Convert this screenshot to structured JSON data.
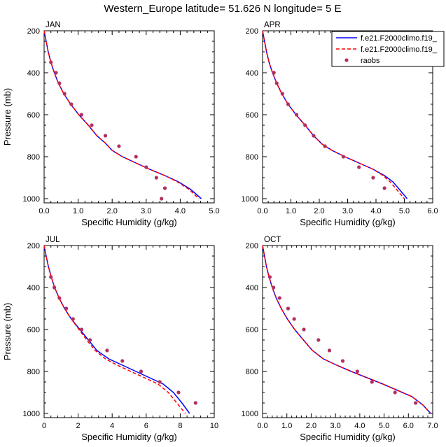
{
  "figure": {
    "title": "Western_Europe  latitude= 51.626 N longitude= 5 E"
  },
  "legend": {
    "placement": "top-right",
    "entries": [
      {
        "label": "f.e21.F2000climo.f19_",
        "color": "#0000ff",
        "style": "solid"
      },
      {
        "label": "f.e21.F2000climo.f19_",
        "color": "#ff0000",
        "style": "dashed"
      },
      {
        "label": "raobs",
        "color": "#b03060",
        "style": "marker"
      }
    ]
  },
  "chart_data": [
    {
      "type": "line",
      "panel": "JAN",
      "xlabel": "Specific Humidity (g/kg)",
      "ylabel": "Pressure (mb)",
      "xlim": [
        0,
        5
      ],
      "ylim": [
        1020,
        200
      ],
      "y_reversed": true,
      "xticks": [
        0.0,
        1.0,
        2.0,
        3.0,
        4.0,
        5.0
      ],
      "xtick_labels": [
        "0.0",
        "1.0",
        "2.0",
        "3.0",
        "4.0",
        "5.0"
      ],
      "yticks": [
        200,
        400,
        600,
        800,
        1000
      ],
      "series": [
        {
          "name": "f.e21.F2000climo.f19_",
          "color": "#0000ff",
          "style": "solid",
          "x": [
            0.0,
            0.06,
            0.12,
            0.2,
            0.3,
            0.42,
            0.58,
            0.78,
            1.02,
            1.3,
            1.55,
            1.8,
            2.0,
            2.3,
            2.7,
            3.1,
            3.55,
            3.95,
            4.3,
            4.62
          ],
          "y": [
            200,
            250,
            300,
            350,
            400,
            450,
            500,
            550,
            600,
            650,
            700,
            735,
            770,
            800,
            830,
            860,
            890,
            920,
            955,
            1000
          ]
        },
        {
          "name": "f.e21.F2000climo.f19_",
          "color": "#ff0000",
          "style": "dashed",
          "x": [
            0.0,
            0.06,
            0.12,
            0.2,
            0.3,
            0.42,
            0.58,
            0.78,
            1.02,
            1.3,
            1.55,
            1.8,
            2.0,
            2.3,
            2.7,
            3.1,
            3.55,
            3.92,
            4.25,
            4.55
          ],
          "y": [
            200,
            250,
            300,
            350,
            400,
            450,
            500,
            550,
            600,
            650,
            700,
            735,
            770,
            800,
            830,
            860,
            890,
            920,
            955,
            1000
          ]
        },
        {
          "name": "raobs",
          "color": "#b03060",
          "style": "marker",
          "x": [
            0.2,
            0.35,
            0.45,
            0.6,
            0.8,
            1.1,
            1.4,
            1.8,
            2.2,
            2.7,
            3.0,
            3.3,
            3.55,
            3.45
          ],
          "y": [
            350,
            400,
            450,
            500,
            550,
            600,
            650,
            700,
            750,
            800,
            850,
            900,
            950,
            1000
          ]
        }
      ]
    },
    {
      "type": "line",
      "panel": "APR",
      "xlabel": "Specific Humidity (g/kg)",
      "ylabel": "",
      "xlim": [
        0,
        6
      ],
      "ylim": [
        1020,
        200
      ],
      "y_reversed": true,
      "xticks": [
        0.0,
        1.0,
        2.0,
        3.0,
        4.0,
        5.0,
        6.0
      ],
      "xtick_labels": [
        "0.0",
        "1.0",
        "2.0",
        "3.0",
        "4.0",
        "5.0",
        "6.0"
      ],
      "yticks": [
        200,
        400,
        600,
        800,
        1000
      ],
      "series": [
        {
          "name": "f.e21.F2000climo.f19_",
          "color": "#0000ff",
          "style": "solid",
          "x": [
            0.0,
            0.07,
            0.14,
            0.23,
            0.35,
            0.5,
            0.68,
            0.9,
            1.18,
            1.5,
            1.8,
            2.1,
            2.45,
            2.9,
            3.4,
            3.9,
            4.3,
            4.6,
            4.85,
            5.1
          ],
          "y": [
            200,
            250,
            300,
            350,
            400,
            450,
            500,
            550,
            600,
            650,
            700,
            740,
            770,
            800,
            830,
            860,
            890,
            920,
            960,
            1000
          ]
        },
        {
          "name": "f.e21.F2000climo.f19_",
          "color": "#ff0000",
          "style": "dashed",
          "x": [
            0.0,
            0.07,
            0.14,
            0.23,
            0.35,
            0.5,
            0.68,
            0.9,
            1.18,
            1.5,
            1.8,
            2.1,
            2.45,
            2.9,
            3.4,
            3.9,
            4.25,
            4.5,
            4.75,
            5.0
          ],
          "y": [
            200,
            250,
            300,
            350,
            400,
            450,
            500,
            550,
            600,
            650,
            700,
            740,
            770,
            800,
            830,
            860,
            890,
            920,
            960,
            1000
          ]
        },
        {
          "name": "raobs",
          "color": "#b03060",
          "style": "marker",
          "x": [
            0.4,
            0.5,
            0.7,
            0.9,
            1.2,
            1.5,
            1.8,
            2.2,
            2.85,
            3.4,
            3.9,
            4.3
          ],
          "y": [
            400,
            450,
            500,
            550,
            600,
            650,
            700,
            750,
            800,
            850,
            900,
            950
          ]
        }
      ]
    },
    {
      "type": "line",
      "panel": "JUL",
      "xlabel": "Specific Humidity (g/kg)",
      "ylabel": "Pressure (mb)",
      "xlim": [
        0,
        10
      ],
      "ylim": [
        1020,
        200
      ],
      "y_reversed": true,
      "xticks": [
        0,
        2,
        4,
        6,
        8,
        10
      ],
      "xtick_labels": [
        "0",
        "2",
        "4",
        "6",
        "8",
        "10"
      ],
      "yticks": [
        200,
        400,
        600,
        800,
        1000
      ],
      "series": [
        {
          "name": "f.e21.F2000climo.f19_",
          "color": "#0000ff",
          "style": "solid",
          "x": [
            0.0,
            0.12,
            0.25,
            0.42,
            0.62,
            0.88,
            1.2,
            1.6,
            2.1,
            2.6,
            3.1,
            3.8,
            4.6,
            5.4,
            6.2,
            7.0,
            7.6,
            8.1,
            8.55
          ],
          "y": [
            200,
            250,
            300,
            350,
            400,
            450,
            500,
            550,
            600,
            650,
            700,
            740,
            770,
            800,
            830,
            860,
            900,
            950,
            1000
          ]
        },
        {
          "name": "f.e21.F2000climo.f19_",
          "color": "#ff0000",
          "style": "dashed",
          "x": [
            0.0,
            0.12,
            0.25,
            0.42,
            0.62,
            0.88,
            1.2,
            1.6,
            2.05,
            2.5,
            3.0,
            3.6,
            4.3,
            5.1,
            5.9,
            6.7,
            7.3,
            7.8,
            8.3
          ],
          "y": [
            200,
            250,
            300,
            350,
            400,
            450,
            500,
            550,
            600,
            650,
            700,
            740,
            770,
            800,
            830,
            860,
            900,
            950,
            1000
          ]
        },
        {
          "name": "raobs",
          "color": "#b03060",
          "style": "marker",
          "x": [
            0.4,
            0.6,
            0.9,
            1.3,
            1.7,
            2.2,
            2.7,
            3.7,
            4.6,
            5.7,
            6.8,
            7.9,
            8.9
          ],
          "y": [
            350,
            400,
            450,
            500,
            550,
            600,
            650,
            700,
            750,
            800,
            850,
            900,
            950
          ]
        }
      ]
    },
    {
      "type": "line",
      "panel": "OCT",
      "xlabel": "Specific Humidity (g/kg)",
      "ylabel": "",
      "xlim": [
        0,
        7
      ],
      "ylim": [
        1020,
        200
      ],
      "y_reversed": true,
      "xticks": [
        0.0,
        1.0,
        2.0,
        3.0,
        4.0,
        5.0,
        6.0,
        7.0
      ],
      "xtick_labels": [
        "0.0",
        "1.0",
        "2.0",
        "3.0",
        "4.0",
        "5.0",
        "6.0",
        "7.0"
      ],
      "yticks": [
        200,
        400,
        600,
        800,
        1000
      ],
      "series": [
        {
          "name": "f.e21.F2000climo.f19_",
          "color": "#0000ff",
          "style": "solid",
          "x": [
            0.0,
            0.08,
            0.16,
            0.27,
            0.4,
            0.56,
            0.77,
            1.02,
            1.32,
            1.68,
            2.05,
            2.5,
            3.05,
            3.65,
            4.3,
            4.95,
            5.55,
            6.15,
            6.6,
            6.92
          ],
          "y": [
            200,
            250,
            300,
            350,
            400,
            450,
            500,
            550,
            600,
            650,
            700,
            740,
            770,
            800,
            830,
            860,
            890,
            920,
            960,
            1000
          ]
        },
        {
          "name": "f.e21.F2000climo.f19_",
          "color": "#ff0000",
          "style": "dashed",
          "x": [
            0.0,
            0.08,
            0.16,
            0.27,
            0.4,
            0.56,
            0.77,
            1.02,
            1.32,
            1.68,
            2.05,
            2.5,
            3.05,
            3.65,
            4.3,
            4.95,
            5.55,
            6.15,
            6.6,
            6.9
          ],
          "y": [
            200,
            250,
            300,
            350,
            400,
            450,
            500,
            550,
            600,
            650,
            700,
            740,
            770,
            800,
            830,
            860,
            890,
            920,
            960,
            1000
          ]
        },
        {
          "name": "raobs",
          "color": "#b03060",
          "style": "marker",
          "x": [
            0.3,
            0.45,
            0.7,
            1.05,
            1.3,
            1.7,
            2.3,
            2.75,
            3.3,
            3.9,
            4.5,
            5.45,
            6.3
          ],
          "y": [
            350,
            400,
            450,
            500,
            550,
            600,
            650,
            700,
            750,
            800,
            850,
            900,
            950
          ]
        }
      ]
    }
  ]
}
